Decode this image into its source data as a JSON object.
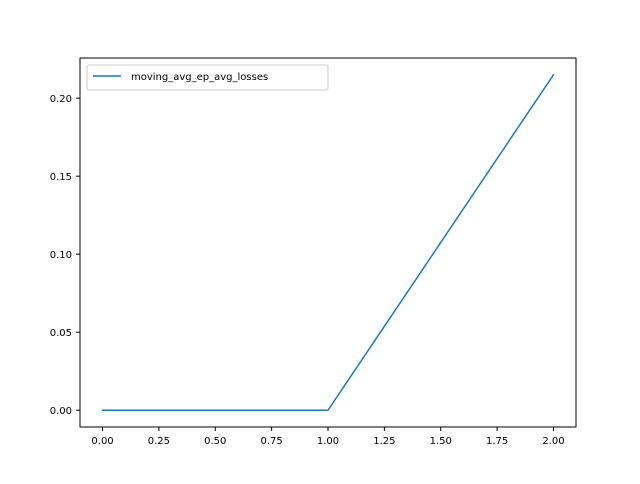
{
  "chart_data": {
    "type": "line",
    "title": "",
    "xlabel": "",
    "ylabel": "",
    "xlim": [
      -0.1,
      2.1
    ],
    "ylim": [
      -0.01075,
      0.22575
    ],
    "xticks": [
      0.0,
      0.25,
      0.5,
      0.75,
      1.0,
      1.25,
      1.5,
      1.75,
      2.0
    ],
    "xtick_labels": [
      "0.00",
      "0.25",
      "0.50",
      "0.75",
      "1.00",
      "1.25",
      "1.50",
      "1.75",
      "2.00"
    ],
    "yticks": [
      0.0,
      0.05,
      0.1,
      0.15,
      0.2
    ],
    "ytick_labels": [
      "0.00",
      "0.05",
      "0.10",
      "0.15",
      "0.20"
    ],
    "grid": false,
    "legend_position": "upper left",
    "series": [
      {
        "name": "moving_avg_ep_avg_losses",
        "color": "#1f77b4",
        "x": [
          0,
          1,
          2
        ],
        "y": [
          0.0,
          0.0,
          0.215
        ]
      }
    ]
  }
}
